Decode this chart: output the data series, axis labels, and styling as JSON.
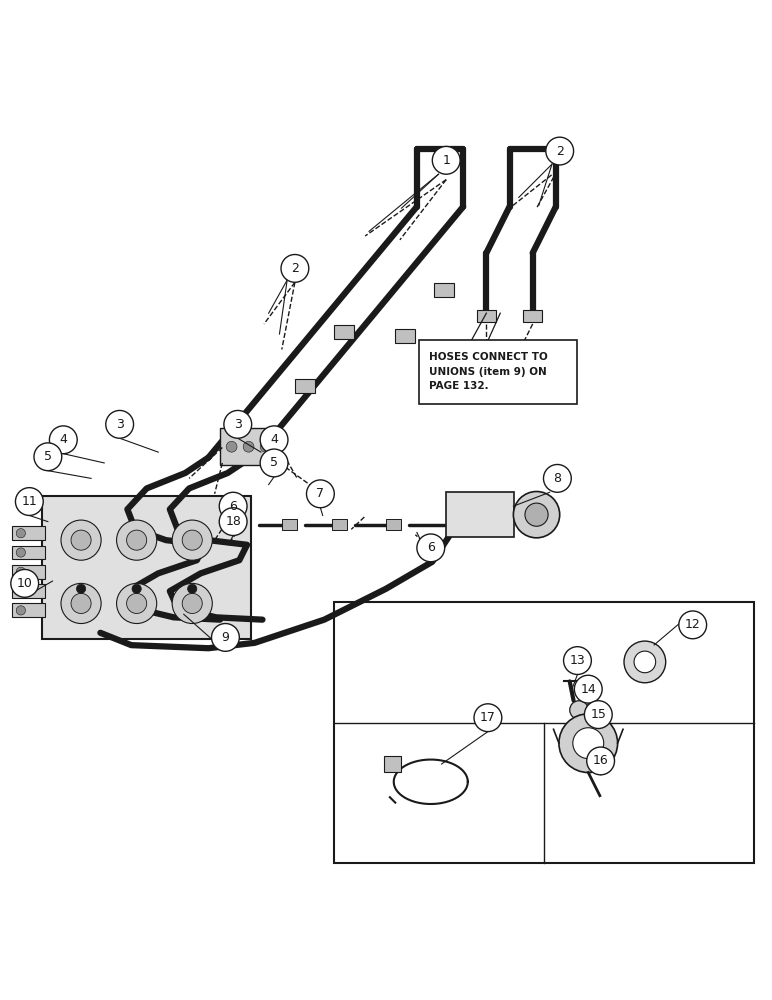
{
  "bg_color": "#ffffff",
  "line_color": "#1a1a1a",
  "label_fontsize": 9,
  "note_text": "HOSES CONNECT TO\nUNIONS (item 9) ON\nPAGE 132.",
  "lw_thick": 4.5,
  "lw_thin": 1.2
}
